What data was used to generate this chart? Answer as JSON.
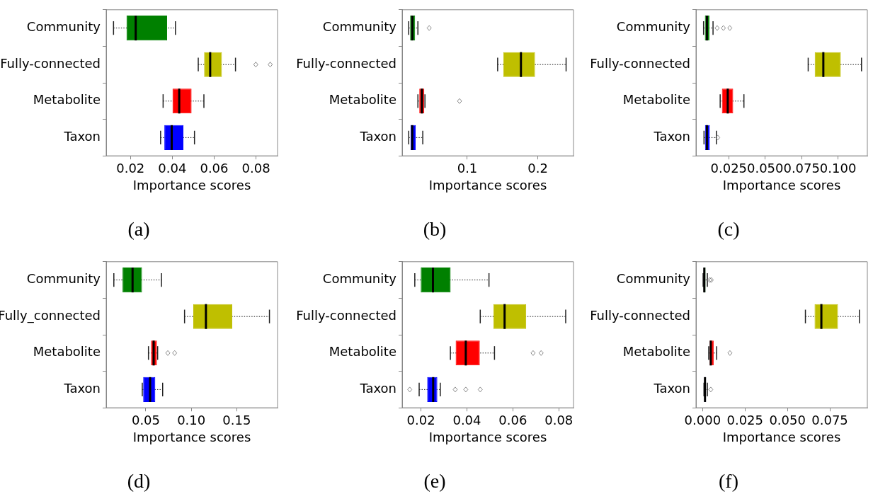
{
  "chart_data": [
    {
      "type": "box",
      "orientation": "horizontal",
      "title": "(a)",
      "xlabel": "Importance scores",
      "categories": [
        "Community",
        "Fully-connected",
        "Metabolite",
        "Taxon"
      ],
      "colors": [
        "#008000",
        "#bfbf00",
        "#ff0000",
        "#0000ff"
      ],
      "xlim": [
        0.0084,
        0.0903
      ],
      "xticks": [
        0.02,
        0.04,
        0.06,
        0.08
      ],
      "grid": false,
      "legend": false,
      "boxes": [
        {
          "low": 0.0119,
          "q1": 0.0181,
          "median": 0.0225,
          "q3": 0.0375,
          "high": 0.0415
        },
        {
          "low": 0.0524,
          "q1": 0.0552,
          "median": 0.0581,
          "q3": 0.0637,
          "high": 0.0702,
          "outliers": [
            0.0799,
            0.0868
          ]
        },
        {
          "low": 0.0356,
          "q1": 0.0401,
          "median": 0.0433,
          "q3": 0.0492,
          "high": 0.0551
        },
        {
          "low": 0.0344,
          "q1": 0.0362,
          "median": 0.0397,
          "q3": 0.0453,
          "high": 0.0506
        }
      ]
    },
    {
      "type": "box",
      "orientation": "horizontal",
      "title": "(b)",
      "xlabel": "Importance scores",
      "categories": [
        "Community",
        "Fully-connected",
        "Metabolite",
        "Taxon"
      ],
      "colors": [
        "#008000",
        "#bfbf00",
        "#ff0000",
        "#0000ff"
      ],
      "xlim": [
        0.0077,
        0.2505
      ],
      "xticks": [
        0.1,
        0.2
      ],
      "grid": false,
      "legend": false,
      "boxes": [
        {
          "low": 0.017,
          "q1": 0.019,
          "median": 0.022,
          "q3": 0.026,
          "high": 0.03,
          "outliers": [
            0.046
          ]
        },
        {
          "low": 0.143,
          "q1": 0.151,
          "median": 0.176,
          "q3": 0.196,
          "high": 0.24
        },
        {
          "low": 0.03,
          "q1": 0.032,
          "median": 0.0356,
          "q3": 0.039,
          "high": 0.04,
          "outliers": [
            0.089
          ]
        },
        {
          "low": 0.017,
          "q1": 0.0196,
          "median": 0.022,
          "q3": 0.0268,
          "high": 0.0369
        }
      ]
    },
    {
      "type": "box",
      "orientation": "horizontal",
      "title": "(c)",
      "xlabel": "Importance scores",
      "categories": [
        "Community",
        "Fully-connected",
        "Metabolite",
        "Taxon"
      ],
      "colors": [
        "#008000",
        "#bfbf00",
        "#ff0000",
        "#0000ff"
      ],
      "xlim": [
        0.0025,
        0.1201
      ],
      "xticks": [
        0.025,
        {
          "value": 0.05,
          "label": "0.050"
        },
        0.075,
        {
          "value": 0.1,
          "label": "0.100"
        }
      ],
      "grid": false,
      "legend": false,
      "boxes": [
        {
          "low": 0.0077,
          "q1": 0.0086,
          "median": 0.01,
          "q3": 0.0117,
          "high": 0.0142,
          "outliers": [
            0.017,
            0.0213,
            0.0257
          ]
        },
        {
          "low": 0.0795,
          "q1": 0.084,
          "median": 0.0899,
          "q3": 0.1019,
          "high": 0.1161
        },
        {
          "low": 0.0191,
          "q1": 0.0203,
          "median": 0.0243,
          "q3": 0.028,
          "high": 0.0354
        },
        {
          "low": 0.008,
          "q1": 0.0087,
          "median": 0.01,
          "q3": 0.012,
          "high": 0.0165,
          "outliers": [
            0.0174
          ]
        }
      ]
    },
    {
      "type": "box",
      "orientation": "horizontal",
      "title": "(d)",
      "xlabel": "Importance scores",
      "categories": [
        "Community",
        "Fully_connected",
        "Metabolite",
        "Taxon"
      ],
      "colors": [
        "#008000",
        "#bfbf00",
        "#ff0000",
        "#0000ff"
      ],
      "xlim": [
        0.0064,
        0.1949
      ],
      "xticks": [
        0.05,
        {
          "value": 0.1,
          "label": "0.10"
        },
        0.15
      ],
      "grid": false,
      "legend": false,
      "boxes": [
        {
          "low": 0.0148,
          "q1": 0.0244,
          "median": 0.0354,
          "q3": 0.0458,
          "high": 0.0672
        },
        {
          "low": 0.0926,
          "q1": 0.1022,
          "median": 0.1161,
          "q3": 0.1451,
          "high": 0.186
        },
        {
          "low": 0.0529,
          "q1": 0.0557,
          "median": 0.0586,
          "q3": 0.0622,
          "high": 0.063,
          "outliers": [
            0.0742,
            0.0817
          ]
        },
        {
          "low": 0.0461,
          "q1": 0.0471,
          "median": 0.0547,
          "q3": 0.0604,
          "high": 0.0685
        }
      ]
    },
    {
      "type": "box",
      "orientation": "horizontal",
      "title": "(e)",
      "xlabel": "Importance scores",
      "categories": [
        "Community",
        "Fully-connected",
        "Metabolite",
        "Taxon"
      ],
      "colors": [
        "#008000",
        "#bfbf00",
        "#ff0000",
        "#0000ff"
      ],
      "xlim": [
        0.0118,
        0.0864
      ],
      "xticks": [
        0.02,
        0.04,
        0.06,
        0.08
      ],
      "grid": false,
      "legend": false,
      "boxes": [
        {
          "low": 0.0173,
          "q1": 0.0199,
          "median": 0.0252,
          "q3": 0.0329,
          "high": 0.0496
        },
        {
          "low": 0.0458,
          "q1": 0.0515,
          "median": 0.0564,
          "q3": 0.0658,
          "high": 0.083
        },
        {
          "low": 0.0328,
          "q1": 0.0351,
          "median": 0.0395,
          "q3": 0.0456,
          "high": 0.052,
          "outliers": [
            0.0688,
            0.0723
          ]
        },
        {
          "low": 0.0192,
          "q1": 0.0227,
          "median": 0.0253,
          "q3": 0.0271,
          "high": 0.0284,
          "outliers": [
            0.0151,
            0.0349,
            0.0395,
            0.0458
          ]
        }
      ]
    },
    {
      "type": "box",
      "orientation": "horizontal",
      "title": "(f)",
      "xlabel": "Importance scores",
      "categories": [
        "Community",
        "Fully-connected",
        "Metabolite",
        "Taxon"
      ],
      "colors": [
        "#008000",
        "#bfbf00",
        "#ff0000",
        "#0000ff"
      ],
      "xlim": [
        -0.0039,
        0.0971
      ],
      "xticks": [
        {
          "value": 0,
          "label": "0.000"
        },
        0.025,
        {
          "value": 0.05,
          "label": "0.050"
        },
        0.075
      ],
      "grid": false,
      "legend": false,
      "boxes": [
        {
          "low": 0.0003,
          "q1": 0.0006,
          "median": 0.001,
          "q3": 0.0017,
          "high": 0.0028,
          "outliers": [
            0.0042,
            0.0051
          ]
        },
        {
          "low": 0.0606,
          "q1": 0.066,
          "median": 0.07,
          "q3": 0.0798,
          "high": 0.0924
        },
        {
          "low": 0.0036,
          "q1": 0.0042,
          "median": 0.0048,
          "q3": 0.0065,
          "high": 0.0083,
          "outliers": [
            0.0161
          ]
        },
        {
          "low": 0.0008,
          "q1": 0.0011,
          "median": 0.0014,
          "q3": 0.0019,
          "high": 0.0028,
          "outliers": [
            0.0048
          ]
        }
      ]
    }
  ]
}
